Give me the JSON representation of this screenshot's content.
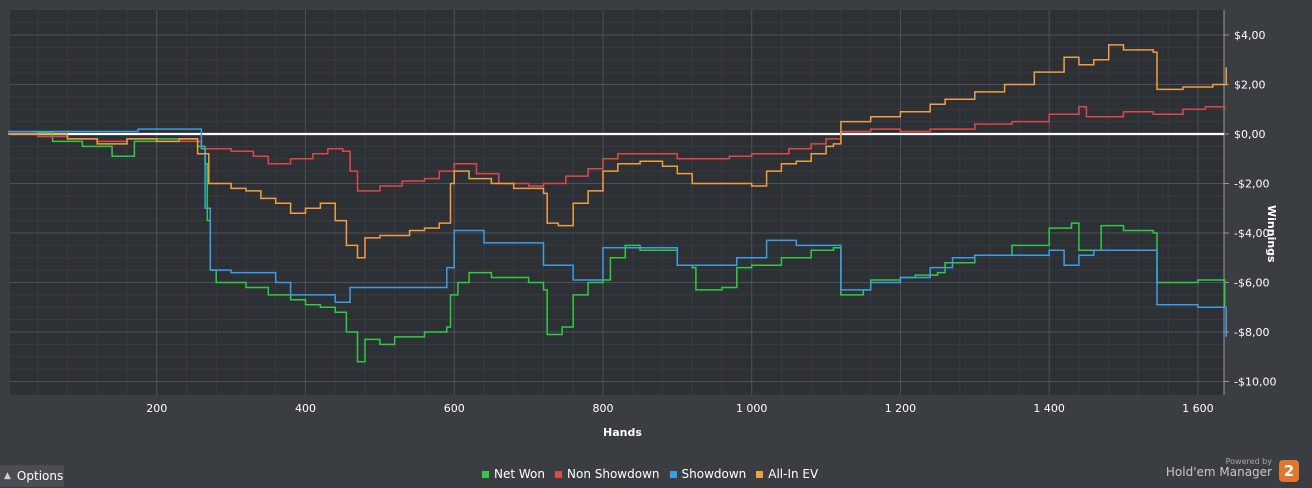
{
  "chart_data": {
    "type": "line",
    "title": "",
    "xlabel": "Hands",
    "ylabel": "Winnings",
    "xlim": [
      0,
      1640
    ],
    "ylim": [
      -10,
      4.5
    ],
    "x_ticks": [
      200,
      400,
      600,
      800,
      1000,
      1200,
      1400,
      1600
    ],
    "x_tick_labels": [
      "200",
      "400",
      "600",
      "800",
      "1 000",
      "1 200",
      "1 400",
      "1 600"
    ],
    "y_ticks": [
      4,
      2,
      0,
      -2,
      -4,
      -6,
      -8,
      -10
    ],
    "y_tick_labels": [
      "$4,00",
      "$2,00",
      "$0,00",
      "-$2,00",
      "-$4,00",
      "-$6,00",
      "-$8,00",
      "-$10,00"
    ],
    "grid": true,
    "legend_position": "bottom-center",
    "series": [
      {
        "name": "Net Won",
        "color": "#2ecc40",
        "points": [
          [
            0,
            0
          ],
          [
            40,
            0.05
          ],
          [
            60,
            -0.3
          ],
          [
            100,
            -0.5
          ],
          [
            140,
            -0.9
          ],
          [
            170,
            -0.3
          ],
          [
            200,
            -0.2
          ],
          [
            230,
            -0.2
          ],
          [
            255,
            -0.5
          ],
          [
            265,
            -1.2
          ],
          [
            268,
            -3.5
          ],
          [
            272,
            -5.5
          ],
          [
            280,
            -6.0
          ],
          [
            320,
            -6.2
          ],
          [
            350,
            -6.5
          ],
          [
            380,
            -6.7
          ],
          [
            400,
            -6.9
          ],
          [
            420,
            -7.0
          ],
          [
            440,
            -7.2
          ],
          [
            455,
            -8.0
          ],
          [
            470,
            -9.2
          ],
          [
            480,
            -8.3
          ],
          [
            500,
            -8.5
          ],
          [
            520,
            -8.2
          ],
          [
            560,
            -8.0
          ],
          [
            590,
            -7.8
          ],
          [
            595,
            -6.5
          ],
          [
            605,
            -6.0
          ],
          [
            620,
            -5.6
          ],
          [
            650,
            -5.8
          ],
          [
            700,
            -6.0
          ],
          [
            720,
            -6.3
          ],
          [
            725,
            -8.1
          ],
          [
            745,
            -7.8
          ],
          [
            760,
            -6.5
          ],
          [
            780,
            -6.0
          ],
          [
            800,
            -5.9
          ],
          [
            810,
            -5.0
          ],
          [
            830,
            -4.5
          ],
          [
            850,
            -4.7
          ],
          [
            900,
            -5.3
          ],
          [
            920,
            -5.4
          ],
          [
            925,
            -6.3
          ],
          [
            960,
            -6.2
          ],
          [
            980,
            -5.4
          ],
          [
            1000,
            -5.3
          ],
          [
            1020,
            -5.3
          ],
          [
            1040,
            -5.0
          ],
          [
            1080,
            -4.7
          ],
          [
            1110,
            -4.6
          ],
          [
            1120,
            -6.5
          ],
          [
            1150,
            -6.3
          ],
          [
            1160,
            -5.9
          ],
          [
            1200,
            -5.8
          ],
          [
            1220,
            -5.7
          ],
          [
            1250,
            -5.6
          ],
          [
            1260,
            -5.2
          ],
          [
            1300,
            -4.9
          ],
          [
            1350,
            -4.5
          ],
          [
            1400,
            -3.8
          ],
          [
            1430,
            -3.6
          ],
          [
            1440,
            -4.7
          ],
          [
            1460,
            -4.7
          ],
          [
            1470,
            -3.7
          ],
          [
            1500,
            -3.9
          ],
          [
            1540,
            -4.0
          ],
          [
            1545,
            -6.0
          ],
          [
            1600,
            -5.9
          ],
          [
            1630,
            -5.9
          ],
          [
            1636,
            -7.0
          ]
        ]
      },
      {
        "name": "Non Showdown",
        "color": "#e04848",
        "points": [
          [
            0,
            0
          ],
          [
            40,
            -0.1
          ],
          [
            80,
            -0.2
          ],
          [
            120,
            -0.3
          ],
          [
            160,
            -0.2
          ],
          [
            200,
            -0.3
          ],
          [
            230,
            -0.3
          ],
          [
            260,
            -0.6
          ],
          [
            300,
            -0.7
          ],
          [
            330,
            -0.9
          ],
          [
            350,
            -1.2
          ],
          [
            380,
            -1.0
          ],
          [
            410,
            -0.8
          ],
          [
            430,
            -0.6
          ],
          [
            450,
            -0.7
          ],
          [
            460,
            -1.5
          ],
          [
            470,
            -2.3
          ],
          [
            500,
            -2.1
          ],
          [
            530,
            -1.9
          ],
          [
            560,
            -1.8
          ],
          [
            580,
            -1.5
          ],
          [
            600,
            -1.2
          ],
          [
            630,
            -1.6
          ],
          [
            660,
            -2.0
          ],
          [
            700,
            -2.1
          ],
          [
            720,
            -2.0
          ],
          [
            750,
            -1.7
          ],
          [
            780,
            -1.4
          ],
          [
            800,
            -1.0
          ],
          [
            820,
            -0.8
          ],
          [
            850,
            -0.8
          ],
          [
            900,
            -1.0
          ],
          [
            940,
            -1.0
          ],
          [
            970,
            -0.9
          ],
          [
            1000,
            -0.8
          ],
          [
            1030,
            -0.8
          ],
          [
            1050,
            -0.6
          ],
          [
            1080,
            -0.4
          ],
          [
            1100,
            -0.2
          ],
          [
            1120,
            0.1
          ],
          [
            1160,
            0.2
          ],
          [
            1200,
            0.1
          ],
          [
            1240,
            0.2
          ],
          [
            1300,
            0.4
          ],
          [
            1350,
            0.5
          ],
          [
            1400,
            0.8
          ],
          [
            1440,
            1.1
          ],
          [
            1450,
            0.7
          ],
          [
            1500,
            0.9
          ],
          [
            1540,
            0.8
          ],
          [
            1580,
            1.0
          ],
          [
            1610,
            1.1
          ],
          [
            1636,
            1.0
          ]
        ]
      },
      {
        "name": "Showdown",
        "color": "#3c9ee8",
        "points": [
          [
            0,
            0.1
          ],
          [
            40,
            0.1
          ],
          [
            80,
            0.1
          ],
          [
            120,
            0.1
          ],
          [
            160,
            0.1
          ],
          [
            175,
            0.2
          ],
          [
            200,
            0.2
          ],
          [
            230,
            0.2
          ],
          [
            260,
            -0.6
          ],
          [
            265,
            -3.0
          ],
          [
            272,
            -5.5
          ],
          [
            300,
            -5.6
          ],
          [
            360,
            -6.0
          ],
          [
            380,
            -6.5
          ],
          [
            400,
            -6.5
          ],
          [
            440,
            -6.8
          ],
          [
            460,
            -6.2
          ],
          [
            520,
            -6.2
          ],
          [
            560,
            -6.2
          ],
          [
            590,
            -5.4
          ],
          [
            600,
            -3.9
          ],
          [
            640,
            -4.4
          ],
          [
            680,
            -4.4
          ],
          [
            720,
            -5.3
          ],
          [
            760,
            -5.9
          ],
          [
            800,
            -4.6
          ],
          [
            840,
            -4.6
          ],
          [
            880,
            -4.6
          ],
          [
            900,
            -5.3
          ],
          [
            940,
            -5.3
          ],
          [
            980,
            -5.0
          ],
          [
            1000,
            -5.0
          ],
          [
            1020,
            -4.3
          ],
          [
            1060,
            -4.5
          ],
          [
            1100,
            -4.5
          ],
          [
            1120,
            -6.3
          ],
          [
            1160,
            -6.0
          ],
          [
            1200,
            -5.8
          ],
          [
            1240,
            -5.4
          ],
          [
            1270,
            -5.0
          ],
          [
            1300,
            -4.9
          ],
          [
            1340,
            -4.9
          ],
          [
            1380,
            -4.9
          ],
          [
            1400,
            -4.7
          ],
          [
            1420,
            -5.3
          ],
          [
            1440,
            -4.9
          ],
          [
            1460,
            -4.7
          ],
          [
            1480,
            -4.7
          ],
          [
            1540,
            -4.7
          ],
          [
            1545,
            -6.9
          ],
          [
            1600,
            -7.0
          ],
          [
            1636,
            -7.0
          ],
          [
            1638,
            -8.2
          ]
        ]
      },
      {
        "name": "All-In EV",
        "color": "#f0a040",
        "points": [
          [
            0,
            0
          ],
          [
            40,
            0
          ],
          [
            80,
            -0.2
          ],
          [
            120,
            -0.4
          ],
          [
            160,
            -0.2
          ],
          [
            200,
            -0.3
          ],
          [
            230,
            -0.2
          ],
          [
            255,
            -0.8
          ],
          [
            270,
            -2.0
          ],
          [
            300,
            -2.2
          ],
          [
            320,
            -2.3
          ],
          [
            340,
            -2.6
          ],
          [
            360,
            -2.8
          ],
          [
            380,
            -3.2
          ],
          [
            400,
            -3.0
          ],
          [
            420,
            -2.8
          ],
          [
            440,
            -3.5
          ],
          [
            455,
            -4.5
          ],
          [
            470,
            -5.0
          ],
          [
            480,
            -4.2
          ],
          [
            500,
            -4.1
          ],
          [
            540,
            -3.9
          ],
          [
            560,
            -3.8
          ],
          [
            580,
            -3.6
          ],
          [
            595,
            -2.0
          ],
          [
            600,
            -1.5
          ],
          [
            620,
            -1.8
          ],
          [
            650,
            -2.0
          ],
          [
            680,
            -2.2
          ],
          [
            700,
            -2.2
          ],
          [
            720,
            -2.4
          ],
          [
            725,
            -3.6
          ],
          [
            740,
            -3.7
          ],
          [
            760,
            -2.8
          ],
          [
            780,
            -2.3
          ],
          [
            800,
            -1.5
          ],
          [
            820,
            -1.2
          ],
          [
            850,
            -1.1
          ],
          [
            880,
            -1.3
          ],
          [
            900,
            -1.6
          ],
          [
            920,
            -2.0
          ],
          [
            960,
            -2.0
          ],
          [
            1000,
            -2.1
          ],
          [
            1020,
            -1.5
          ],
          [
            1040,
            -1.2
          ],
          [
            1060,
            -1.1
          ],
          [
            1080,
            -0.8
          ],
          [
            1100,
            -0.5
          ],
          [
            1110,
            -0.4
          ],
          [
            1120,
            0.5
          ],
          [
            1160,
            0.7
          ],
          [
            1200,
            0.9
          ],
          [
            1240,
            1.2
          ],
          [
            1260,
            1.4
          ],
          [
            1300,
            1.7
          ],
          [
            1340,
            2.0
          ],
          [
            1380,
            2.5
          ],
          [
            1420,
            3.1
          ],
          [
            1440,
            2.8
          ],
          [
            1460,
            3.0
          ],
          [
            1480,
            3.6
          ],
          [
            1500,
            3.4
          ],
          [
            1540,
            3.3
          ],
          [
            1545,
            1.8
          ],
          [
            1580,
            1.9
          ],
          [
            1620,
            2.0
          ],
          [
            1636,
            2.0
          ],
          [
            1638,
            2.7
          ]
        ]
      }
    ]
  },
  "ui": {
    "options_label": "Options",
    "powered_by": "Powered by",
    "brand": "Hold'em Manager",
    "logo": "2"
  }
}
